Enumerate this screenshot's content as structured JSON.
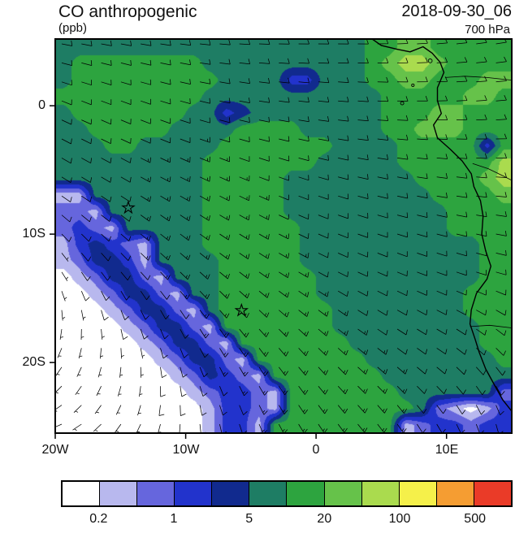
{
  "header": {
    "title": "CO anthropogenic",
    "units": "(ppb)",
    "datetime": "2018-09-30_06",
    "level": "700 hPa"
  },
  "chart_data": {
    "type": "heatmap",
    "title": "CO anthropogenic",
    "units": "ppb",
    "datetime": "2018-09-30_06",
    "pressure_level": "700 hPa",
    "lon_range": [
      -20,
      15
    ],
    "lat_range": [
      -25.5,
      5.2
    ],
    "x_ticks": [
      {
        "lon": -20,
        "label": "20W"
      },
      {
        "lon": -10,
        "label": "10W"
      },
      {
        "lon": 0,
        "label": "0"
      },
      {
        "lon": 10,
        "label": "10E"
      }
    ],
    "y_ticks": [
      {
        "lat": 0,
        "label": "0"
      },
      {
        "lat": -10,
        "label": "10S"
      },
      {
        "lat": -20,
        "label": "20S"
      }
    ],
    "colorbar_levels": [
      0.2,
      0.5,
      1,
      2,
      5,
      10,
      20,
      50,
      100,
      200,
      500
    ],
    "colorbar_labels": [
      "0.2",
      "1",
      "5",
      "20",
      "100",
      "500"
    ],
    "colors": [
      "#ffffff",
      "#b8b8ee",
      "#6666dd",
      "#2233cc",
      "#112a8e",
      "#1e7d64",
      "#2da43f",
      "#66c24a",
      "#aadb4e",
      "#f5f04a",
      "#f59d32",
      "#ea3b28"
    ],
    "grid": {
      "ncols": 28,
      "nrows": 24,
      "comment": "level-band index per cell, 0=lowest(<0.2ppb) .. 11=highest(>500ppb)",
      "values": [
        [
          5,
          5,
          5,
          5,
          5,
          5,
          5,
          5,
          5,
          5,
          5,
          5,
          5,
          5,
          5,
          5,
          5,
          5,
          5,
          6,
          6,
          7,
          7,
          6,
          6,
          6,
          6,
          6
        ],
        [
          5,
          6,
          6,
          6,
          6,
          6,
          6,
          6,
          6,
          5,
          5,
          5,
          5,
          5,
          5,
          5,
          5,
          5,
          5,
          6,
          7,
          8,
          8,
          7,
          6,
          6,
          6,
          6
        ],
        [
          5,
          6,
          6,
          6,
          6,
          6,
          6,
          6,
          6,
          6,
          5,
          5,
          5,
          5,
          3,
          3,
          5,
          5,
          5,
          6,
          6,
          7,
          7,
          6,
          6,
          6,
          7,
          7
        ],
        [
          6,
          6,
          6,
          6,
          6,
          6,
          6,
          6,
          6,
          5,
          5,
          5,
          5,
          5,
          5,
          5,
          5,
          5,
          5,
          5,
          6,
          6,
          6,
          6,
          6,
          7,
          7,
          6
        ],
        [
          5,
          6,
          6,
          6,
          6,
          6,
          6,
          6,
          5,
          5,
          3,
          4,
          5,
          5,
          5,
          5,
          5,
          5,
          5,
          5,
          6,
          6,
          6,
          7,
          7,
          6,
          6,
          6
        ],
        [
          5,
          5,
          6,
          6,
          6,
          6,
          6,
          5,
          5,
          5,
          5,
          6,
          6,
          6,
          6,
          5,
          5,
          5,
          5,
          5,
          6,
          6,
          7,
          7,
          7,
          6,
          6,
          6
        ],
        [
          5,
          5,
          5,
          6,
          6,
          5,
          5,
          5,
          5,
          5,
          6,
          6,
          6,
          6,
          6,
          6,
          6,
          5,
          5,
          5,
          5,
          6,
          6,
          6,
          6,
          6,
          3,
          6
        ],
        [
          5,
          5,
          5,
          5,
          5,
          5,
          5,
          5,
          5,
          6,
          6,
          6,
          6,
          6,
          6,
          6,
          5,
          5,
          5,
          5,
          5,
          6,
          6,
          6,
          6,
          6,
          6,
          8
        ],
        [
          5,
          5,
          5,
          5,
          5,
          5,
          5,
          5,
          5,
          6,
          6,
          6,
          6,
          6,
          5,
          5,
          5,
          5,
          5,
          5,
          5,
          5,
          6,
          6,
          6,
          6,
          7,
          8
        ],
        [
          1,
          1,
          5,
          5,
          5,
          5,
          5,
          5,
          5,
          6,
          6,
          6,
          6,
          6,
          5,
          5,
          5,
          5,
          5,
          5,
          5,
          5,
          5,
          6,
          6,
          6,
          6,
          7
        ],
        [
          2,
          2,
          1,
          5,
          5,
          5,
          5,
          5,
          5,
          6,
          6,
          6,
          6,
          6,
          5,
          5,
          5,
          5,
          5,
          5,
          5,
          5,
          5,
          5,
          6,
          6,
          6,
          6
        ],
        [
          2,
          3,
          2,
          1,
          5,
          5,
          5,
          5,
          5,
          6,
          6,
          6,
          6,
          6,
          6,
          5,
          5,
          5,
          5,
          5,
          5,
          5,
          5,
          5,
          6,
          6,
          6,
          6
        ],
        [
          1,
          3,
          4,
          3,
          2,
          1,
          5,
          5,
          5,
          6,
          6,
          6,
          6,
          6,
          6,
          5,
          5,
          5,
          5,
          5,
          5,
          5,
          5,
          5,
          5,
          5,
          6,
          6
        ],
        [
          1,
          2,
          4,
          4,
          3,
          1,
          5,
          5,
          5,
          5,
          6,
          6,
          6,
          6,
          6,
          5,
          5,
          5,
          5,
          5,
          5,
          5,
          5,
          5,
          5,
          5,
          6,
          6
        ],
        [
          0,
          1,
          2,
          4,
          4,
          2,
          1,
          5,
          5,
          5,
          6,
          6,
          6,
          6,
          6,
          6,
          5,
          5,
          5,
          5,
          5,
          5,
          5,
          5,
          5,
          5,
          6,
          6
        ],
        [
          0,
          0,
          1,
          2,
          4,
          4,
          2,
          1,
          5,
          5,
          6,
          6,
          6,
          6,
          6,
          6,
          5,
          5,
          5,
          5,
          5,
          5,
          5,
          5,
          5,
          6,
          6,
          6
        ],
        [
          0,
          0,
          0,
          1,
          2,
          4,
          4,
          2,
          1,
          5,
          6,
          6,
          6,
          6,
          6,
          6,
          6,
          5,
          5,
          5,
          5,
          5,
          5,
          5,
          5,
          6,
          6,
          6
        ],
        [
          0,
          0,
          0,
          0,
          1,
          2,
          4,
          4,
          2,
          1,
          6,
          6,
          6,
          6,
          6,
          6,
          6,
          5,
          5,
          5,
          5,
          5,
          5,
          5,
          5,
          5,
          6,
          6
        ],
        [
          0,
          0,
          0,
          0,
          0,
          1,
          2,
          4,
          4,
          2,
          1,
          6,
          6,
          6,
          6,
          6,
          6,
          6,
          5,
          5,
          5,
          5,
          5,
          5,
          5,
          5,
          6,
          6
        ],
        [
          0,
          0,
          0,
          0,
          0,
          0,
          1,
          2,
          4,
          4,
          2,
          1,
          6,
          6,
          6,
          6,
          6,
          6,
          6,
          5,
          5,
          5,
          5,
          5,
          5,
          5,
          5,
          6
        ],
        [
          0,
          0,
          0,
          0,
          0,
          0,
          0,
          1,
          2,
          4,
          3,
          2,
          1,
          6,
          6,
          6,
          6,
          6,
          6,
          6,
          5,
          5,
          5,
          5,
          5,
          5,
          5,
          5
        ],
        [
          0,
          0,
          0,
          0,
          0,
          0,
          0,
          0,
          1,
          2,
          3,
          3,
          2,
          1,
          6,
          6,
          6,
          6,
          6,
          6,
          6,
          5,
          5,
          5,
          5,
          5,
          5,
          2
        ],
        [
          0,
          0,
          0,
          0,
          0,
          0,
          0,
          0,
          0,
          1,
          3,
          3,
          2,
          1,
          6,
          6,
          6,
          6,
          6,
          6,
          6,
          6,
          5,
          2,
          1,
          0,
          1,
          3
        ],
        [
          0,
          0,
          0,
          0,
          0,
          0,
          0,
          0,
          0,
          1,
          3,
          3,
          1,
          6,
          6,
          6,
          6,
          6,
          6,
          6,
          6,
          1,
          2,
          3,
          3,
          2,
          3,
          3
        ]
      ]
    },
    "wind": {
      "comment": "coarse wind-barb field, meteorological from-direction (deg) and speed (kt)",
      "grid_cols": 7,
      "grid_rows": 6,
      "dir_from_deg": [
        [
          100,
          100,
          95,
          90,
          90,
          85,
          80
        ],
        [
          115,
          112,
          105,
          100,
          95,
          90,
          85
        ],
        [
          125,
          122,
          118,
          112,
          105,
          100,
          95
        ],
        [
          150,
          140,
          132,
          122,
          115,
          110,
          105
        ],
        [
          210,
          175,
          152,
          140,
          130,
          125,
          140
        ],
        [
          255,
          215,
          172,
          152,
          142,
          152,
          172
        ]
      ],
      "speed_kt": [
        [
          10,
          10,
          10,
          10,
          9,
          8,
          8
        ],
        [
          12,
          12,
          12,
          11,
          10,
          9,
          8
        ],
        [
          8,
          13,
          14,
          12,
          11,
          10,
          9
        ],
        [
          6,
          12,
          15,
          13,
          12,
          10,
          10
        ],
        [
          5,
          6,
          13,
          14,
          13,
          12,
          10
        ],
        [
          4,
          5,
          10,
          14,
          13,
          12,
          10
        ]
      ]
    },
    "coastline": [
      [
        4.3,
        5.2
      ],
      [
        5.0,
        4.7
      ],
      [
        6.2,
        4.4
      ],
      [
        7.2,
        4.2
      ],
      [
        8.2,
        4.6
      ],
      [
        8.9,
        4.1
      ],
      [
        9.5,
        3.4
      ],
      [
        9.8,
        2.6
      ],
      [
        9.3,
        1.4
      ],
      [
        9.3,
        0.4
      ],
      [
        9.6,
        -0.6
      ],
      [
        9.0,
        -1.5
      ],
      [
        9.3,
        -2.5
      ],
      [
        10.3,
        -3.4
      ],
      [
        11.2,
        -4.3
      ],
      [
        11.9,
        -5.3
      ],
      [
        12.1,
        -6.3
      ],
      [
        12.6,
        -7.4
      ],
      [
        12.8,
        -8.6
      ],
      [
        12.7,
        -10.0
      ],
      [
        13.0,
        -11.3
      ],
      [
        13.4,
        -12.5
      ],
      [
        13.1,
        -13.5
      ],
      [
        12.3,
        -14.6
      ],
      [
        11.9,
        -15.9
      ],
      [
        11.8,
        -17.0
      ],
      [
        12.2,
        -18.2
      ],
      [
        12.5,
        -19.2
      ],
      [
        13.0,
        -20.5
      ],
      [
        13.7,
        -21.8
      ],
      [
        14.3,
        -22.9
      ],
      [
        15.0,
        -23.8
      ]
    ],
    "borders": [
      [
        [
          9.9,
          2.2
        ],
        [
          11.4,
          2.3
        ],
        [
          13.1,
          2.2
        ],
        [
          14.99,
          2.0
        ]
      ],
      [
        [
          12.0,
          -4.5
        ],
        [
          13.2,
          -4.9
        ],
        [
          14.4,
          -5.5
        ],
        [
          14.99,
          -5.8
        ]
      ],
      [
        [
          11.8,
          -17.2
        ],
        [
          13.3,
          -17.1
        ],
        [
          14.99,
          -17.3
        ]
      ]
    ],
    "islands": [
      {
        "lon": 8.75,
        "lat": 3.5,
        "r": 2.4
      },
      {
        "lon": 7.42,
        "lat": 1.6,
        "r": 1.6
      },
      {
        "lon": 6.6,
        "lat": 0.2,
        "r": 2.0
      }
    ],
    "markers": [
      {
        "lon": -14.4,
        "lat": -7.95
      },
      {
        "lon": -5.72,
        "lat": -15.95
      }
    ]
  }
}
